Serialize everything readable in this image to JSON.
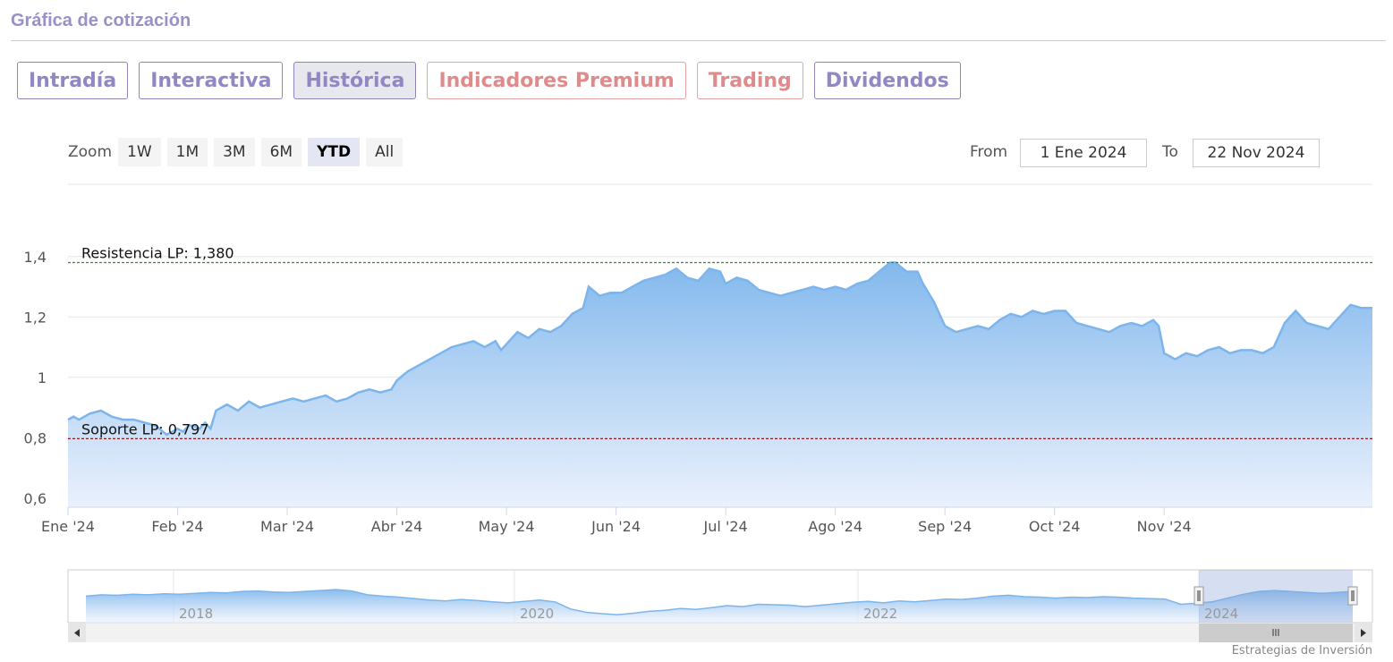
{
  "header": {
    "title": "Gráfica de cotización"
  },
  "tabs": [
    {
      "label": "Intradía",
      "style": "purple"
    },
    {
      "label": "Interactiva",
      "style": "purple"
    },
    {
      "label": "Histórica",
      "style": "active"
    },
    {
      "label": "Indicadores Premium",
      "style": "red"
    },
    {
      "label": "Trading",
      "style": "red"
    },
    {
      "label": "Dividendos",
      "style": "purple"
    }
  ],
  "zoom": {
    "label": "Zoom",
    "buttons": [
      "1W",
      "1M",
      "3M",
      "6M",
      "YTD",
      "All"
    ],
    "selected": "YTD"
  },
  "range": {
    "from_label": "From",
    "from_value": "1 Ene 2024",
    "to_label": "To",
    "to_value": "22 Nov 2024"
  },
  "credit": "Estrategias de Inversión",
  "colors": {
    "line": "#7cb5ec",
    "area_top": "#7cb5ec",
    "resistance": "#2e8b2e",
    "support": "#8b1a1a",
    "tab_purple": "#9287c4",
    "tab_red": "#e08b8b"
  },
  "chart_data": {
    "type": "area",
    "title": "",
    "xlabel": "",
    "ylabel": "",
    "ylim": [
      0.57,
      1.42
    ],
    "yticks": [
      {
        "value": 0.6,
        "label": "0,6"
      },
      {
        "value": 0.8,
        "label": "0,8"
      },
      {
        "value": 1.0,
        "label": "1"
      },
      {
        "value": 1.2,
        "label": "1,2"
      },
      {
        "value": 1.4,
        "label": "1,4"
      }
    ],
    "xticks": [
      "Ene '24",
      "Feb '24",
      "Mar '24",
      "Abr '24",
      "May '24",
      "Jun '24",
      "Jul '24",
      "Ago '24",
      "Sep '24",
      "Oct '24",
      "Nov '24"
    ],
    "x_range_months": [
      0,
      10.7
    ],
    "grid": true,
    "series": [
      {
        "points": [
          [
            0.0,
            0.86
          ],
          [
            0.05,
            0.87
          ],
          [
            0.1,
            0.86
          ],
          [
            0.2,
            0.88
          ],
          [
            0.3,
            0.89
          ],
          [
            0.4,
            0.87
          ],
          [
            0.5,
            0.86
          ],
          [
            0.6,
            0.86
          ],
          [
            0.7,
            0.85
          ],
          [
            0.8,
            0.84
          ],
          [
            0.9,
            0.81
          ],
          [
            1.0,
            0.83
          ],
          [
            1.05,
            0.82
          ],
          [
            1.1,
            0.84
          ],
          [
            1.15,
            0.84
          ],
          [
            1.2,
            0.83
          ],
          [
            1.25,
            0.85
          ],
          [
            1.3,
            0.83
          ],
          [
            1.35,
            0.89
          ],
          [
            1.45,
            0.91
          ],
          [
            1.55,
            0.89
          ],
          [
            1.65,
            0.92
          ],
          [
            1.75,
            0.9
          ],
          [
            1.85,
            0.91
          ],
          [
            1.95,
            0.92
          ],
          [
            2.05,
            0.93
          ],
          [
            2.15,
            0.92
          ],
          [
            2.25,
            0.93
          ],
          [
            2.35,
            0.94
          ],
          [
            2.45,
            0.92
          ],
          [
            2.55,
            0.93
          ],
          [
            2.65,
            0.95
          ],
          [
            2.75,
            0.96
          ],
          [
            2.85,
            0.95
          ],
          [
            2.95,
            0.96
          ],
          [
            3.0,
            0.99
          ],
          [
            3.1,
            1.02
          ],
          [
            3.2,
            1.04
          ],
          [
            3.3,
            1.06
          ],
          [
            3.4,
            1.08
          ],
          [
            3.5,
            1.1
          ],
          [
            3.6,
            1.11
          ],
          [
            3.7,
            1.12
          ],
          [
            3.8,
            1.1
          ],
          [
            3.9,
            1.12
          ],
          [
            3.95,
            1.09
          ],
          [
            4.0,
            1.11
          ],
          [
            4.1,
            1.15
          ],
          [
            4.2,
            1.13
          ],
          [
            4.3,
            1.16
          ],
          [
            4.4,
            1.15
          ],
          [
            4.5,
            1.17
          ],
          [
            4.6,
            1.21
          ],
          [
            4.7,
            1.23
          ],
          [
            4.75,
            1.3
          ],
          [
            4.85,
            1.27
          ],
          [
            4.95,
            1.28
          ],
          [
            5.05,
            1.28
          ],
          [
            5.15,
            1.3
          ],
          [
            5.25,
            1.32
          ],
          [
            5.35,
            1.33
          ],
          [
            5.45,
            1.34
          ],
          [
            5.55,
            1.36
          ],
          [
            5.65,
            1.33
          ],
          [
            5.75,
            1.32
          ],
          [
            5.85,
            1.36
          ],
          [
            5.95,
            1.35
          ],
          [
            6.0,
            1.31
          ],
          [
            6.1,
            1.33
          ],
          [
            6.2,
            1.32
          ],
          [
            6.3,
            1.29
          ],
          [
            6.4,
            1.28
          ],
          [
            6.5,
            1.27
          ],
          [
            6.6,
            1.28
          ],
          [
            6.7,
            1.29
          ],
          [
            6.8,
            1.3
          ],
          [
            6.9,
            1.29
          ],
          [
            7.0,
            1.3
          ],
          [
            7.1,
            1.29
          ],
          [
            7.2,
            1.31
          ],
          [
            7.3,
            1.32
          ],
          [
            7.4,
            1.35
          ],
          [
            7.5,
            1.38
          ],
          [
            7.55,
            1.38
          ],
          [
            7.65,
            1.35
          ],
          [
            7.75,
            1.35
          ],
          [
            7.8,
            1.31
          ],
          [
            7.9,
            1.25
          ],
          [
            8.0,
            1.17
          ],
          [
            8.1,
            1.15
          ],
          [
            8.2,
            1.16
          ],
          [
            8.3,
            1.17
          ],
          [
            8.4,
            1.16
          ],
          [
            8.5,
            1.19
          ],
          [
            8.6,
            1.21
          ],
          [
            8.7,
            1.2
          ],
          [
            8.8,
            1.22
          ],
          [
            8.9,
            1.21
          ],
          [
            9.0,
            1.22
          ],
          [
            9.1,
            1.22
          ],
          [
            9.2,
            1.18
          ],
          [
            9.3,
            1.17
          ],
          [
            9.4,
            1.16
          ],
          [
            9.5,
            1.15
          ],
          [
            9.6,
            1.17
          ],
          [
            9.7,
            1.18
          ],
          [
            9.8,
            1.17
          ],
          [
            9.9,
            1.19
          ],
          [
            9.95,
            1.17
          ],
          [
            10.0,
            1.08
          ],
          [
            10.1,
            1.06
          ],
          [
            10.2,
            1.08
          ],
          [
            10.3,
            1.07
          ],
          [
            10.4,
            1.09
          ],
          [
            10.5,
            1.1
          ],
          [
            10.6,
            1.08
          ],
          [
            10.7,
            1.09
          ],
          [
            10.8,
            1.09
          ],
          [
            10.9,
            1.08
          ],
          [
            11.0,
            1.1
          ],
          [
            11.1,
            1.18
          ],
          [
            11.2,
            1.22
          ],
          [
            11.3,
            1.18
          ],
          [
            11.4,
            1.17
          ],
          [
            11.5,
            1.16
          ],
          [
            11.6,
            1.2
          ],
          [
            11.7,
            1.24
          ],
          [
            11.8,
            1.23
          ],
          [
            11.9,
            1.23
          ]
        ]
      }
    ],
    "annotations": [
      {
        "type": "hline",
        "value": 1.38,
        "label": "Resistencia LP: 1,380",
        "color": "#2e8b2e"
      },
      {
        "type": "hline",
        "value": 0.797,
        "label": "Soporte LP: 0,797",
        "color": "#8b1a1a"
      }
    ],
    "navigator": {
      "x_labels": [
        "2018",
        "2020",
        "2022",
        "2024"
      ],
      "points": [
        0.52,
        0.55,
        0.54,
        0.56,
        0.55,
        0.57,
        0.56,
        0.58,
        0.6,
        0.59,
        0.62,
        0.63,
        0.61,
        0.6,
        0.62,
        0.64,
        0.66,
        0.63,
        0.55,
        0.52,
        0.5,
        0.47,
        0.44,
        0.42,
        0.45,
        0.43,
        0.4,
        0.38,
        0.41,
        0.44,
        0.4,
        0.25,
        0.18,
        0.15,
        0.13,
        0.16,
        0.2,
        0.22,
        0.26,
        0.24,
        0.28,
        0.32,
        0.3,
        0.35,
        0.34,
        0.33,
        0.3,
        0.33,
        0.36,
        0.39,
        0.41,
        0.38,
        0.42,
        0.4,
        0.43,
        0.46,
        0.45,
        0.48,
        0.52,
        0.54,
        0.51,
        0.5,
        0.48,
        0.5,
        0.49,
        0.51,
        0.5,
        0.48,
        0.47,
        0.46,
        0.35,
        0.37,
        0.4,
        0.48,
        0.56,
        0.62,
        0.64,
        0.62,
        0.6,
        0.58,
        0.6,
        0.62
      ]
    }
  }
}
